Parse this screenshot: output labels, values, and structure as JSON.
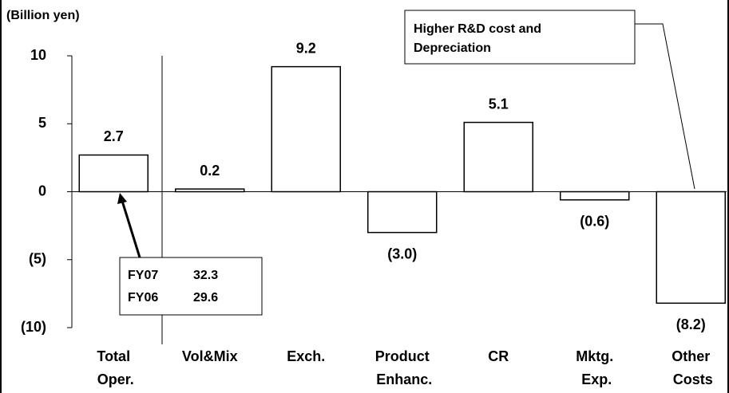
{
  "chart_data": {
    "type": "bar",
    "unit_label": "(Billion yen)",
    "categories": [
      "Total Oper.",
      "Vol&Mix",
      "Exch.",
      "Product Enhanc.",
      "CR",
      "Mktg. Exp.",
      "Other Costs"
    ],
    "values": [
      2.7,
      0.2,
      9.2,
      -3.0,
      5.1,
      -0.6,
      -8.2
    ],
    "value_labels": [
      "2.7",
      "0.2",
      "9.2",
      "(3.0)",
      "5.1",
      "(0.6)",
      "(8.2)"
    ],
    "color": "#ffffff",
    "ylim": [
      -10,
      10
    ],
    "yticks": [
      {
        "value": -10,
        "label": "(10)"
      },
      {
        "value": -5,
        "label": "(5)"
      },
      0,
      5,
      10
    ],
    "inset": {
      "rows": [
        {
          "label": "FY07",
          "value": 32.3
        },
        {
          "label": "FY06",
          "value": 29.6
        }
      ]
    },
    "annotation": {
      "lines": [
        "Higher R&D cost and",
        "Depreciation"
      ]
    }
  }
}
